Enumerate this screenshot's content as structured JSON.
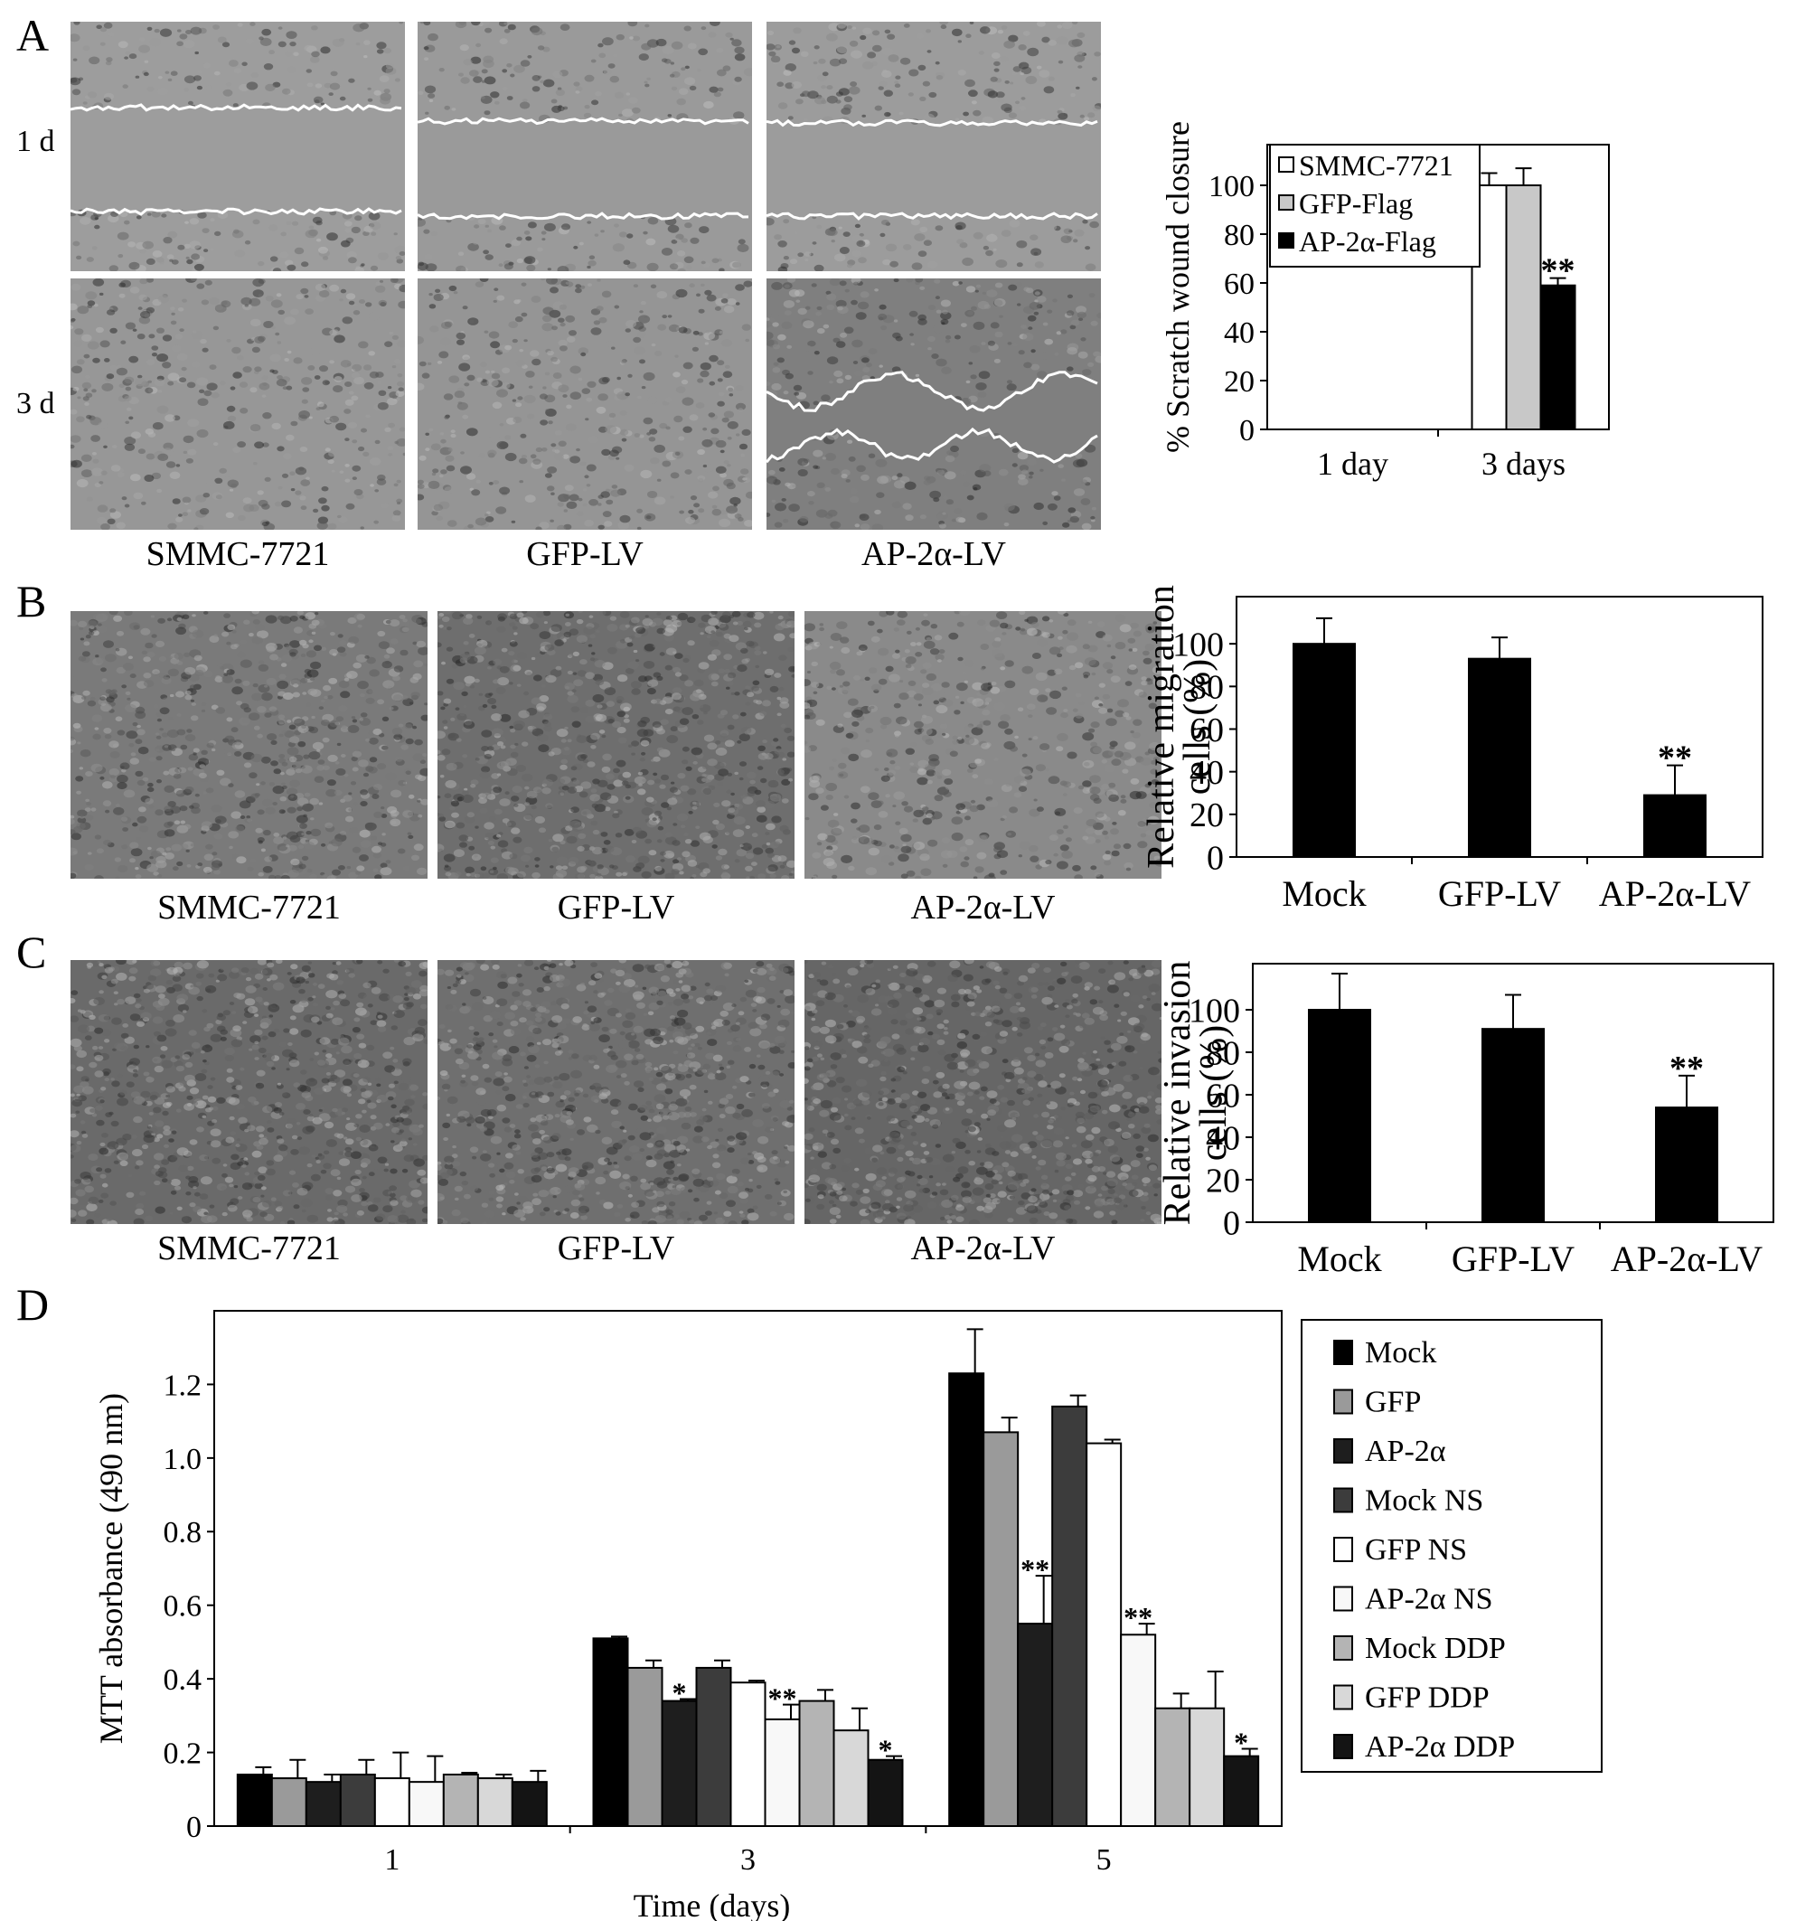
{
  "panels": {
    "A": {
      "label": "A",
      "row_labels": [
        "1 d",
        "3 d"
      ],
      "column_labels": [
        "SMMC-7721",
        "GFP-LV",
        "AP-2α-LV"
      ]
    },
    "B": {
      "label": "B",
      "column_labels": [
        "SMMC-7721",
        "GFP-LV",
        "AP-2α-LV"
      ]
    },
    "C": {
      "label": "C",
      "column_labels": [
        "SMMC-7721",
        "GFP-LV",
        "AP-2α-LV"
      ]
    },
    "D": {
      "label": "D"
    }
  },
  "colors": {
    "black": "#000000",
    "mid_gray": "#9a9a9a",
    "dark_gray": "#3c3c3c",
    "light_gray": "#bdbdbd",
    "lighter_gray": "#d4d4d4",
    "white": "#ffffff"
  },
  "chart_data": [
    {
      "id": "A",
      "type": "bar",
      "ylabel": "% Scratch wound closure",
      "xlabel": "",
      "categories": [
        "1 day",
        "3 days"
      ],
      "ylim": [
        0,
        100
      ],
      "yticks": [
        0,
        20,
        40,
        60,
        80,
        100
      ],
      "legend_position": "top-left",
      "series": [
        {
          "name": "SMMC-7721",
          "color": "#ffffff",
          "values": [
            null,
            100
          ],
          "errors": [
            null,
            5
          ]
        },
        {
          "name": "GFP-Flag",
          "color": "#c8c8c8",
          "values": [
            null,
            100
          ],
          "errors": [
            null,
            7
          ]
        },
        {
          "name": "AP-2α-Flag",
          "color": "#000000",
          "values": [
            null,
            59
          ],
          "errors": [
            null,
            3
          ]
        }
      ],
      "annotations": [
        {
          "series": 2,
          "category": 1,
          "text": "**"
        }
      ]
    },
    {
      "id": "B",
      "type": "bar",
      "ylabel": "Relative migration cells (%)",
      "xlabel": "",
      "categories": [
        "Mock",
        "GFP-LV",
        "AP-2α-LV"
      ],
      "ylim": [
        0,
        120
      ],
      "yticks": [
        0,
        20,
        40,
        60,
        80,
        100
      ],
      "series": [
        {
          "color": "#000000",
          "values": [
            100,
            93,
            29
          ],
          "errors": [
            12,
            10,
            14
          ]
        }
      ],
      "annotations": [
        {
          "series": 0,
          "category": 2,
          "text": "**"
        }
      ]
    },
    {
      "id": "C",
      "type": "bar",
      "ylabel": "Relative invasion cells (%)",
      "xlabel": "",
      "categories": [
        "Mock",
        "GFP-LV",
        "AP-2α-LV"
      ],
      "ylim": [
        0,
        120
      ],
      "yticks": [
        0,
        20,
        40,
        60,
        80,
        100
      ],
      "series": [
        {
          "color": "#000000",
          "values": [
            100,
            91,
            54
          ],
          "errors": [
            17,
            16,
            15
          ]
        }
      ],
      "annotations": [
        {
          "series": 0,
          "category": 2,
          "text": "**"
        }
      ]
    },
    {
      "id": "D",
      "type": "bar",
      "ylabel": "MTT absorbance (490 nm)",
      "xlabel": "Time (days)",
      "categories": [
        "1",
        "3",
        "5"
      ],
      "ylim": [
        0,
        1.4
      ],
      "yticks": [
        0,
        0.2,
        0.4,
        0.6,
        0.8,
        1.0,
        1.2
      ],
      "ytick_labels": [
        "0",
        "0.2",
        "0.4",
        "0.6",
        "0.8",
        "1.0",
        "1.2"
      ],
      "legend_position": "right",
      "series": [
        {
          "name": "Mock",
          "color": "#000000",
          "values": [
            0.14,
            0.51,
            1.23
          ],
          "errors": [
            0.02,
            0.005,
            0.12
          ]
        },
        {
          "name": "GFP",
          "color": "#9a9a9a",
          "values": [
            0.13,
            0.43,
            1.07
          ],
          "errors": [
            0.05,
            0.02,
            0.04
          ]
        },
        {
          "name": "AP-2α",
          "color": "#1e1e1e",
          "values": [
            0.12,
            0.34,
            0.55
          ],
          "errors": [
            0.02,
            0.005,
            0.13
          ]
        },
        {
          "name": "Mock NS",
          "color": "#3c3c3c",
          "values": [
            0.14,
            0.43,
            1.14
          ],
          "errors": [
            0.04,
            0.02,
            0.03
          ]
        },
        {
          "name": "GFP NS",
          "color": "#ffffff",
          "values": [
            0.13,
            0.39,
            1.04
          ],
          "errors": [
            0.07,
            0.005,
            0.01
          ]
        },
        {
          "name": "AP-2α NS",
          "color": "#f8f8f8",
          "values": [
            0.12,
            0.29,
            0.52
          ],
          "errors": [
            0.07,
            0.04,
            0.03
          ]
        },
        {
          "name": "Mock DDP",
          "color": "#b4b4b4",
          "values": [
            0.14,
            0.34,
            0.32
          ],
          "errors": [
            0.005,
            0.03,
            0.04
          ]
        },
        {
          "name": "GFP DDP",
          "color": "#d8d8d8",
          "values": [
            0.13,
            0.26,
            0.32
          ],
          "errors": [
            0.01,
            0.06,
            0.1
          ]
        },
        {
          "name": "AP-2α DDP",
          "color": "#141414",
          "values": [
            0.12,
            0.18,
            0.19
          ],
          "errors": [
            0.03,
            0.01,
            0.02
          ]
        }
      ],
      "annotations": [
        {
          "series": 2,
          "category": 1,
          "text": "*"
        },
        {
          "series": 5,
          "category": 1,
          "text": "**"
        },
        {
          "series": 8,
          "category": 1,
          "text": "*"
        },
        {
          "series": 2,
          "category": 2,
          "text": "**"
        },
        {
          "series": 5,
          "category": 2,
          "text": "**"
        },
        {
          "series": 8,
          "category": 2,
          "text": "*"
        }
      ]
    }
  ]
}
